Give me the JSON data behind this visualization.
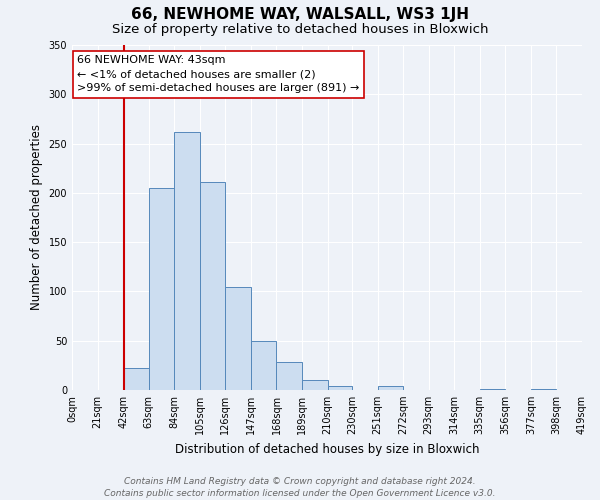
{
  "title": "66, NEWHOME WAY, WALSALL, WS3 1JH",
  "subtitle": "Size of property relative to detached houses in Bloxwich",
  "xlabel": "Distribution of detached houses by size in Bloxwich",
  "ylabel": "Number of detached properties",
  "bin_edges": [
    0,
    21,
    42,
    63,
    84,
    105,
    126,
    147,
    168,
    189,
    210,
    230,
    251,
    272,
    293,
    314,
    335,
    356,
    377,
    398,
    419
  ],
  "bin_counts": [
    0,
    0,
    22,
    205,
    262,
    211,
    104,
    50,
    28,
    10,
    4,
    0,
    4,
    0,
    0,
    0,
    1,
    0,
    1,
    0
  ],
  "bar_facecolor": "#ccddf0",
  "bar_edgecolor": "#5588bb",
  "property_line_x": 43,
  "property_line_color": "#cc0000",
  "annotation_line1": "66 NEWHOME WAY: 43sqm",
  "annotation_line2": "← <1% of detached houses are smaller (2)",
  "annotation_line3": ">99% of semi-detached houses are larger (891) →",
  "ylim": [
    0,
    350
  ],
  "yticks": [
    0,
    50,
    100,
    150,
    200,
    250,
    300,
    350
  ],
  "tick_labels": [
    "0sqm",
    "21sqm",
    "42sqm",
    "63sqm",
    "84sqm",
    "105sqm",
    "126sqm",
    "147sqm",
    "168sqm",
    "189sqm",
    "210sqm",
    "230sqm",
    "251sqm",
    "272sqm",
    "293sqm",
    "314sqm",
    "335sqm",
    "356sqm",
    "377sqm",
    "398sqm",
    "419sqm"
  ],
  "footer_line1": "Contains HM Land Registry data © Crown copyright and database right 2024.",
  "footer_line2": "Contains public sector information licensed under the Open Government Licence v3.0.",
  "bg_color": "#eef2f8",
  "plot_bg_color": "#eef2f8",
  "title_fontsize": 11,
  "subtitle_fontsize": 9.5,
  "axis_label_fontsize": 8.5,
  "tick_fontsize": 7,
  "annotation_fontsize": 8,
  "footer_fontsize": 6.5
}
